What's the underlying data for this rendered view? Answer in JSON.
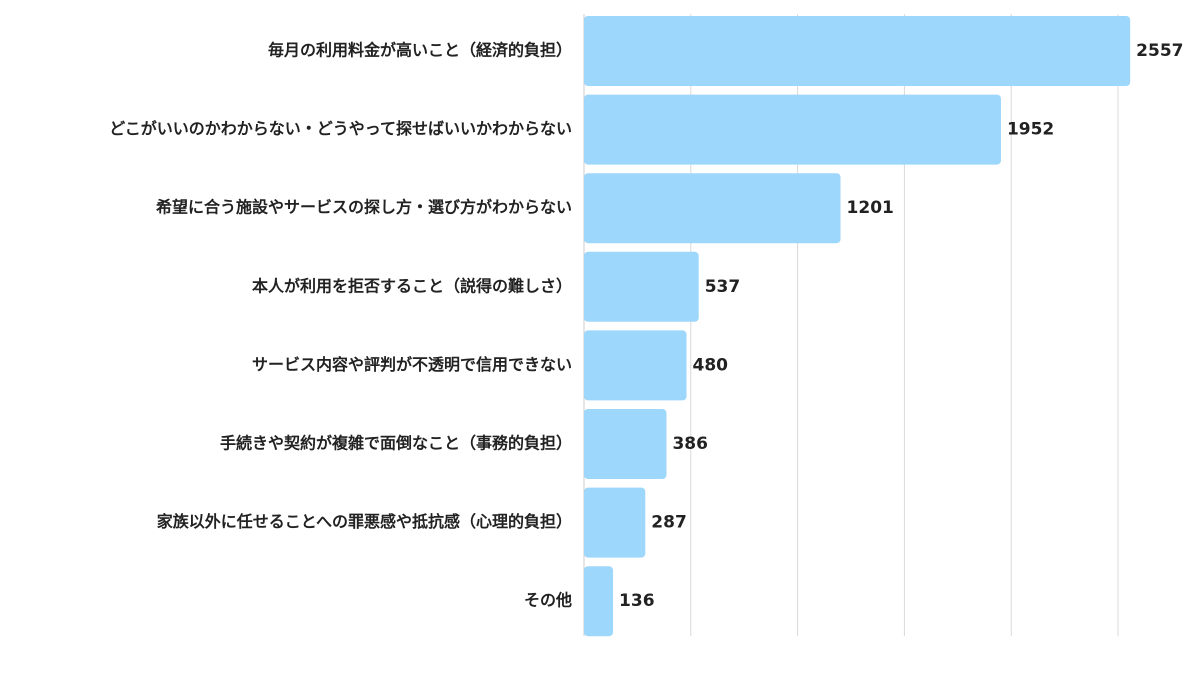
{
  "chart_data": {
    "type": "bar",
    "orientation": "horizontal",
    "categories": [
      "毎月の利用料金が高いこと（経済的負担）",
      "どこがいいのかわからない・どうやって探せばいいかわからない",
      "希望に合う施設やサービスの探し方・選び方がわからない",
      "本人が利用を拒否すること（説得の難しさ）",
      "サービス内容や評判が不透明で信用できない",
      "手続きや契約が複雑で面倒なこと（事務的負担）",
      "家族以外に任せることへの罪悪感や抵抗感（心理的負担）",
      "その他"
    ],
    "values": [
      2557,
      1952,
      1201,
      537,
      480,
      386,
      287,
      136
    ],
    "value_labels": [
      "2557",
      "1952",
      "1201",
      "537",
      "480",
      "386",
      "287",
      "136"
    ],
    "xlim": [
      0,
      2500
    ],
    "grid_step": 500,
    "grid": true,
    "bar_color": "#9dd7fb"
  }
}
